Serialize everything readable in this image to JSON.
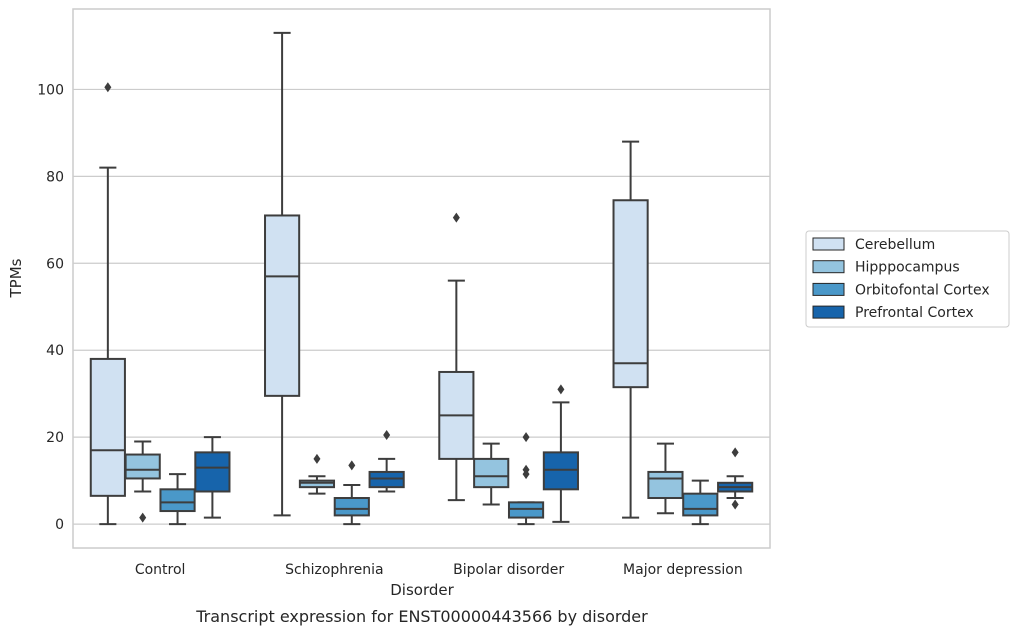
{
  "chart_data": {
    "type": "box",
    "caption": "Transcript expression for ENST00000443566 by disorder",
    "xlabel": "Disorder",
    "ylabel": "TPMs",
    "ylim": [
      -5.5,
      118.5
    ],
    "yticks": [
      0,
      20,
      40,
      60,
      80,
      100
    ],
    "grid": "horizontal",
    "legend_position": "right",
    "categories": [
      "Control",
      "Schizophrenia",
      "Bipolar disorder",
      "Major depression"
    ],
    "series": [
      {
        "name": "Cerebellum",
        "color": "#d0e1f2",
        "boxes": [
          {
            "whisker_low": 0,
            "q1": 6.5,
            "median": 17,
            "q3": 38,
            "whisker_high": 82,
            "outliers": [
              100.5
            ]
          },
          {
            "whisker_low": 2,
            "q1": 29.5,
            "median": 57,
            "q3": 71,
            "whisker_high": 113,
            "outliers": []
          },
          {
            "whisker_low": 5.5,
            "q1": 15,
            "median": 25,
            "q3": 35,
            "whisker_high": 56,
            "outliers": [
              70.5
            ]
          },
          {
            "whisker_low": 1.5,
            "q1": 31.5,
            "median": 37,
            "q3": 74.5,
            "whisker_high": 88,
            "outliers": []
          }
        ]
      },
      {
        "name": "Hipppocampus",
        "color": "#94c4df",
        "boxes": [
          {
            "whisker_low": 7.5,
            "q1": 10.5,
            "median": 12.5,
            "q3": 16,
            "whisker_high": 19,
            "outliers": [
              1.5
            ]
          },
          {
            "whisker_low": 7,
            "q1": 8.5,
            "median": 9.5,
            "q3": 10,
            "whisker_high": 11,
            "outliers": [
              15
            ]
          },
          {
            "whisker_low": 4.5,
            "q1": 8.5,
            "median": 11,
            "q3": 15,
            "whisker_high": 18.5,
            "outliers": []
          },
          {
            "whisker_low": 2.5,
            "q1": 6,
            "median": 10.5,
            "q3": 12,
            "whisker_high": 18.5,
            "outliers": []
          }
        ]
      },
      {
        "name": "Orbitofontal Cortex",
        "color": "#4a98c9",
        "boxes": [
          {
            "whisker_low": 0,
            "q1": 3,
            "median": 5,
            "q3": 8,
            "whisker_high": 11.5,
            "outliers": []
          },
          {
            "whisker_low": 0,
            "q1": 2,
            "median": 3.5,
            "q3": 6,
            "whisker_high": 9,
            "outliers": [
              13.5
            ]
          },
          {
            "whisker_low": 0,
            "q1": 1.5,
            "median": 3.5,
            "q3": 5,
            "whisker_high": 5,
            "outliers": [
              11.5,
              12.5,
              20
            ]
          },
          {
            "whisker_low": 0,
            "q1": 2,
            "median": 3.5,
            "q3": 7,
            "whisker_high": 10,
            "outliers": []
          }
        ]
      },
      {
        "name": "Prefrontal Cortex",
        "color": "#1764ab",
        "boxes": [
          {
            "whisker_low": 1.5,
            "q1": 7.5,
            "median": 13,
            "q3": 16.5,
            "whisker_high": 20,
            "outliers": []
          },
          {
            "whisker_low": 7.5,
            "q1": 8.5,
            "median": 10.5,
            "q3": 12,
            "whisker_high": 15,
            "outliers": [
              20.5
            ]
          },
          {
            "whisker_low": 0.5,
            "q1": 8,
            "median": 12.5,
            "q3": 16.5,
            "whisker_high": 28,
            "outliers": [
              31
            ]
          },
          {
            "whisker_low": 6,
            "q1": 7.5,
            "median": 8.5,
            "q3": 9.5,
            "whisker_high": 11,
            "outliers": [
              4.5,
              16.5
            ]
          }
        ]
      }
    ]
  }
}
